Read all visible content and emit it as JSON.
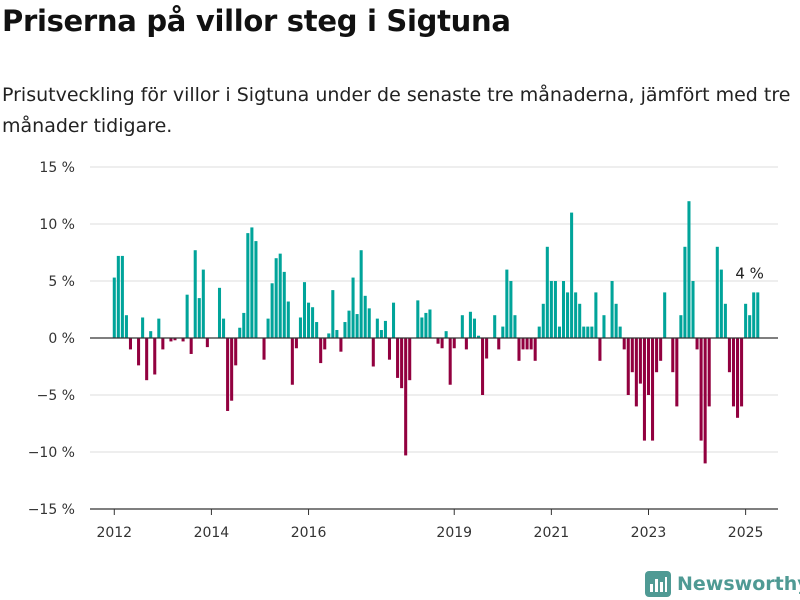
{
  "header": {
    "title": "Priserna på villor steg i Sigtuna",
    "subtitle": "Prisutveckling för villor i Sigtuna under de senaste tre månaderna, jämfört med tre månader tidigare."
  },
  "brand": {
    "name": "Newsworthy",
    "icon": "bar-chart-logo-icon"
  },
  "colors": {
    "positive": "#00a49a",
    "negative": "#92003f",
    "grid": "#dddddd",
    "zero_line": "#333333"
  },
  "chart_data": {
    "type": "bar",
    "title": "Priserna på villor steg i Sigtuna",
    "ylim": [
      -15,
      15
    ],
    "yticks": [
      {
        "value": 15,
        "label": "15 %"
      },
      {
        "value": 10,
        "label": "10 %"
      },
      {
        "value": 5,
        "label": "5 %"
      },
      {
        "value": 0,
        "label": "0 %"
      },
      {
        "value": -5,
        "label": "−5 %"
      },
      {
        "value": -10,
        "label": "−10 %"
      },
      {
        "value": -15,
        "label": "−15 %"
      }
    ],
    "xlim": [
      "2011-07",
      "2025-09"
    ],
    "xticks": [
      {
        "value": "2012-01",
        "label": "2012"
      },
      {
        "value": "2014-01",
        "label": "2014"
      },
      {
        "value": "2016-01",
        "label": "2016"
      },
      {
        "value": "2019-01",
        "label": "2019"
      },
      {
        "value": "2021-01",
        "label": "2021"
      },
      {
        "value": "2023-01",
        "label": "2023"
      },
      {
        "value": "2025-01",
        "label": "2025"
      }
    ],
    "grid": true,
    "annotation": {
      "text": "4 %",
      "x": "2025-01",
      "y": 4
    },
    "series": [
      {
        "points": [
          {
            "x": "2012-01",
            "y": 5.3
          },
          {
            "x": "2012-02",
            "y": 7.2
          },
          {
            "x": "2012-03",
            "y": 7.2
          },
          {
            "x": "2012-04",
            "y": 2.0
          },
          {
            "x": "2012-05",
            "y": -1.0
          },
          {
            "x": "2012-06",
            "y": 0.0
          },
          {
            "x": "2012-07",
            "y": -2.4
          },
          {
            "x": "2012-08",
            "y": 1.8
          },
          {
            "x": "2012-09",
            "y": -3.7
          },
          {
            "x": "2012-10",
            "y": 0.6
          },
          {
            "x": "2012-11",
            "y": -3.2
          },
          {
            "x": "2012-12",
            "y": 1.7
          },
          {
            "x": "2013-01",
            "y": -1.0
          },
          {
            "x": "2013-02",
            "y": 0.0
          },
          {
            "x": "2013-03",
            "y": -0.3
          },
          {
            "x": "2013-04",
            "y": -0.2
          },
          {
            "x": "2013-05",
            "y": 0.0
          },
          {
            "x": "2013-06",
            "y": -0.3
          },
          {
            "x": "2013-07",
            "y": 3.8
          },
          {
            "x": "2013-08",
            "y": -1.4
          },
          {
            "x": "2013-09",
            "y": 7.7
          },
          {
            "x": "2013-10",
            "y": 3.5
          },
          {
            "x": "2013-11",
            "y": 6.0
          },
          {
            "x": "2013-12",
            "y": -0.8
          },
          {
            "x": "2014-01",
            "y": 0.0
          },
          {
            "x": "2014-02",
            "y": 0.0
          },
          {
            "x": "2014-03",
            "y": 4.4
          },
          {
            "x": "2014-04",
            "y": 1.7
          },
          {
            "x": "2014-05",
            "y": -6.4
          },
          {
            "x": "2014-06",
            "y": -5.5
          },
          {
            "x": "2014-07",
            "y": -2.4
          },
          {
            "x": "2014-08",
            "y": 0.9
          },
          {
            "x": "2014-09",
            "y": 2.2
          },
          {
            "x": "2014-10",
            "y": 9.2
          },
          {
            "x": "2014-11",
            "y": 9.7
          },
          {
            "x": "2014-12",
            "y": 8.5
          },
          {
            "x": "2015-01",
            "y": 0.0
          },
          {
            "x": "2015-02",
            "y": -1.9
          },
          {
            "x": "2015-03",
            "y": 1.7
          },
          {
            "x": "2015-04",
            "y": 4.8
          },
          {
            "x": "2015-05",
            "y": 7.0
          },
          {
            "x": "2015-06",
            "y": 7.4
          },
          {
            "x": "2015-07",
            "y": 5.8
          },
          {
            "x": "2015-08",
            "y": 3.2
          },
          {
            "x": "2015-09",
            "y": -4.1
          },
          {
            "x": "2015-10",
            "y": -0.9
          },
          {
            "x": "2015-11",
            "y": 1.8
          },
          {
            "x": "2015-12",
            "y": 4.9
          },
          {
            "x": "2016-01",
            "y": 3.1
          },
          {
            "x": "2016-02",
            "y": 2.7
          },
          {
            "x": "2016-03",
            "y": 1.4
          },
          {
            "x": "2016-04",
            "y": -2.2
          },
          {
            "x": "2016-05",
            "y": -1.0
          },
          {
            "x": "2016-06",
            "y": 0.4
          },
          {
            "x": "2016-07",
            "y": 4.2
          },
          {
            "x": "2016-08",
            "y": 0.7
          },
          {
            "x": "2016-09",
            "y": -1.2
          },
          {
            "x": "2016-10",
            "y": 1.4
          },
          {
            "x": "2016-11",
            "y": 2.4
          },
          {
            "x": "2016-12",
            "y": 5.3
          },
          {
            "x": "2017-01",
            "y": 2.1
          },
          {
            "x": "2017-02",
            "y": 7.7
          },
          {
            "x": "2017-03",
            "y": 3.7
          },
          {
            "x": "2017-04",
            "y": 2.6
          },
          {
            "x": "2017-05",
            "y": -2.5
          },
          {
            "x": "2017-06",
            "y": 1.7
          },
          {
            "x": "2017-07",
            "y": 0.7
          },
          {
            "x": "2017-08",
            "y": 1.5
          },
          {
            "x": "2017-09",
            "y": -1.9
          },
          {
            "x": "2017-10",
            "y": 3.1
          },
          {
            "x": "2017-11",
            "y": -3.5
          },
          {
            "x": "2017-12",
            "y": -4.4
          },
          {
            "x": "2018-01",
            "y": -10.3
          },
          {
            "x": "2018-02",
            "y": -3.7
          },
          {
            "x": "2018-03",
            "y": 0.0
          },
          {
            "x": "2018-04",
            "y": 3.3
          },
          {
            "x": "2018-05",
            "y": 1.8
          },
          {
            "x": "2018-06",
            "y": 2.2
          },
          {
            "x": "2018-07",
            "y": 2.5
          },
          {
            "x": "2018-08",
            "y": 0.0
          },
          {
            "x": "2018-09",
            "y": -0.5
          },
          {
            "x": "2018-10",
            "y": -0.9
          },
          {
            "x": "2018-11",
            "y": 0.6
          },
          {
            "x": "2018-12",
            "y": -4.1
          },
          {
            "x": "2019-01",
            "y": -0.9
          },
          {
            "x": "2019-02",
            "y": 0.0
          },
          {
            "x": "2019-03",
            "y": 2.0
          },
          {
            "x": "2019-04",
            "y": -1.0
          },
          {
            "x": "2019-05",
            "y": 2.3
          },
          {
            "x": "2019-06",
            "y": 1.7
          },
          {
            "x": "2019-07",
            "y": 0.2
          },
          {
            "x": "2019-08",
            "y": -5.0
          },
          {
            "x": "2019-09",
            "y": -1.8
          },
          {
            "x": "2019-10",
            "y": 0.0
          },
          {
            "x": "2019-11",
            "y": 2.0
          },
          {
            "x": "2019-12",
            "y": -1.0
          },
          {
            "x": "2020-01",
            "y": 1.0
          },
          {
            "x": "2020-02",
            "y": 6.0
          },
          {
            "x": "2020-03",
            "y": 5.0
          },
          {
            "x": "2020-04",
            "y": 2.0
          },
          {
            "x": "2020-05",
            "y": -2.0
          },
          {
            "x": "2020-06",
            "y": -1.0
          },
          {
            "x": "2020-07",
            "y": -1.0
          },
          {
            "x": "2020-08",
            "y": -1.0
          },
          {
            "x": "2020-09",
            "y": -2.0
          },
          {
            "x": "2020-10",
            "y": 1.0
          },
          {
            "x": "2020-11",
            "y": 3.0
          },
          {
            "x": "2020-12",
            "y": 8.0
          },
          {
            "x": "2021-01",
            "y": 5.0
          },
          {
            "x": "2021-02",
            "y": 5.0
          },
          {
            "x": "2021-03",
            "y": 1.0
          },
          {
            "x": "2021-04",
            "y": 5.0
          },
          {
            "x": "2021-05",
            "y": 4.0
          },
          {
            "x": "2021-06",
            "y": 11.0
          },
          {
            "x": "2021-07",
            "y": 4.0
          },
          {
            "x": "2021-08",
            "y": 3.0
          },
          {
            "x": "2021-09",
            "y": 1.0
          },
          {
            "x": "2021-10",
            "y": 1.0
          },
          {
            "x": "2021-11",
            "y": 1.0
          },
          {
            "x": "2021-12",
            "y": 4.0
          },
          {
            "x": "2022-01",
            "y": -2.0
          },
          {
            "x": "2022-02",
            "y": 2.0
          },
          {
            "x": "2022-03",
            "y": 0.0
          },
          {
            "x": "2022-04",
            "y": 5.0
          },
          {
            "x": "2022-05",
            "y": 3.0
          },
          {
            "x": "2022-06",
            "y": 1.0
          },
          {
            "x": "2022-07",
            "y": -1.0
          },
          {
            "x": "2022-08",
            "y": -5.0
          },
          {
            "x": "2022-09",
            "y": -3.0
          },
          {
            "x": "2022-10",
            "y": -6.0
          },
          {
            "x": "2022-11",
            "y": -4.0
          },
          {
            "x": "2022-12",
            "y": -9.0
          },
          {
            "x": "2023-01",
            "y": -5.0
          },
          {
            "x": "2023-02",
            "y": -9.0
          },
          {
            "x": "2023-03",
            "y": -3.0
          },
          {
            "x": "2023-04",
            "y": -2.0
          },
          {
            "x": "2023-05",
            "y": 4.0
          },
          {
            "x": "2023-06",
            "y": 0.0
          },
          {
            "x": "2023-07",
            "y": -3.0
          },
          {
            "x": "2023-08",
            "y": -6.0
          },
          {
            "x": "2023-09",
            "y": 2.0
          },
          {
            "x": "2023-10",
            "y": 8.0
          },
          {
            "x": "2023-11",
            "y": 12.0
          },
          {
            "x": "2023-12",
            "y": 5.0
          },
          {
            "x": "2024-01",
            "y": -1.0
          },
          {
            "x": "2024-02",
            "y": -9.0
          },
          {
            "x": "2024-03",
            "y": -11.0
          },
          {
            "x": "2024-04",
            "y": -6.0
          },
          {
            "x": "2024-05",
            "y": 0.0
          },
          {
            "x": "2024-06",
            "y": 8.0
          },
          {
            "x": "2024-07",
            "y": 6.0
          },
          {
            "x": "2024-08",
            "y": 3.0
          },
          {
            "x": "2024-09",
            "y": -3.0
          },
          {
            "x": "2024-10",
            "y": -6.0
          },
          {
            "x": "2024-11",
            "y": -7.0
          },
          {
            "x": "2024-12",
            "y": -6.0
          },
          {
            "x": "2025-01",
            "y": 3.0
          },
          {
            "x": "2025-02",
            "y": 2.0
          },
          {
            "x": "2025-03",
            "y": 4.0
          },
          {
            "x": "2025-04",
            "y": 4.0
          }
        ]
      }
    ]
  }
}
